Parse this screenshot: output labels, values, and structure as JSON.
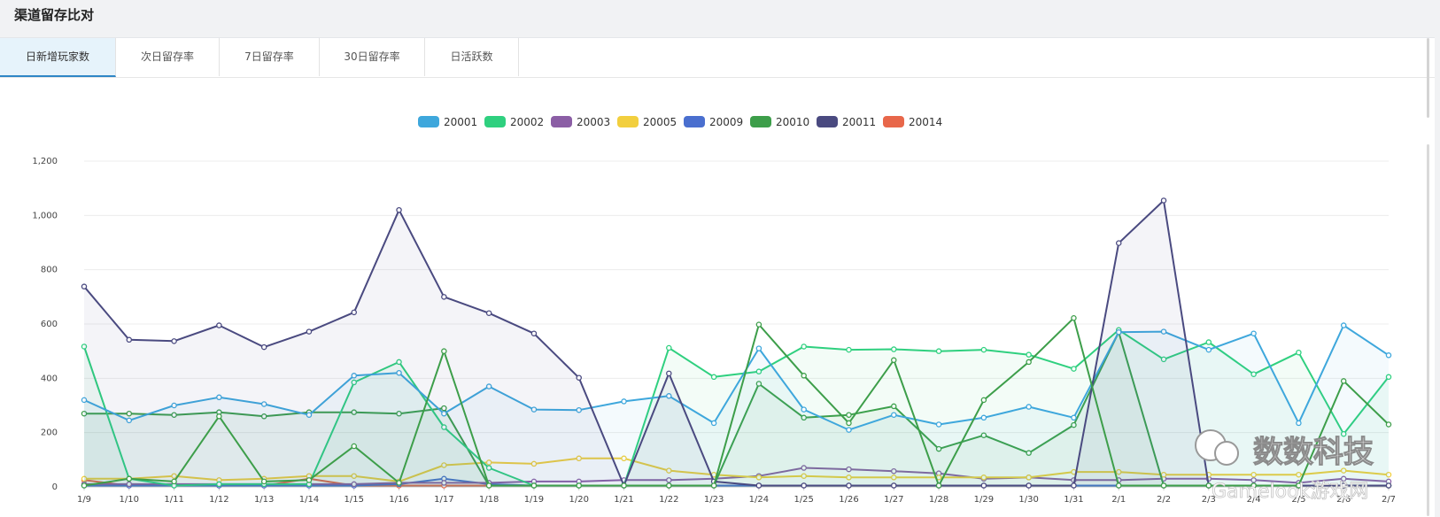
{
  "header": {
    "title": "渠道留存比对"
  },
  "tabs": [
    {
      "label": "日新增玩家数",
      "active": true
    },
    {
      "label": "次日留存率",
      "active": false
    },
    {
      "label": "7日留存率",
      "active": false
    },
    {
      "label": "30日留存率",
      "active": false
    },
    {
      "label": "日活跃数",
      "active": false
    }
  ],
  "watermark": {
    "brand": "数数科技",
    "site": "Gamelook游戏网"
  },
  "chart_data": {
    "type": "line",
    "x": [
      "1/9",
      "1/10",
      "1/11",
      "1/12",
      "1/13",
      "1/14",
      "1/15",
      "1/16",
      "1/17",
      "1/18",
      "1/19",
      "1/20",
      "1/21",
      "1/22",
      "1/23",
      "1/24",
      "1/25",
      "1/26",
      "1/27",
      "1/28",
      "1/29",
      "1/30",
      "1/31",
      "2/1",
      "2/2",
      "2/3",
      "2/4",
      "2/5",
      "2/6",
      "2/7"
    ],
    "ylim": [
      0,
      1200
    ],
    "yticks": [
      0,
      200,
      400,
      600,
      800,
      1000,
      1200
    ],
    "ytick_labels": [
      "0",
      "200",
      "400",
      "600",
      "800",
      "1,000",
      "1,200"
    ],
    "grid": true,
    "legend_position": "top-center",
    "series": [
      {
        "name": "20001",
        "color": "#3ea7dc",
        "values": [
          320,
          245,
          300,
          330,
          305,
          265,
          410,
          420,
          270,
          370,
          285,
          283,
          315,
          335,
          235,
          510,
          285,
          210,
          265,
          230,
          255,
          295,
          255,
          570,
          572,
          505,
          565,
          235,
          595,
          485
        ]
      },
      {
        "name": "20002",
        "color": "#2fd07f",
        "values": [
          517,
          30,
          5,
          10,
          10,
          10,
          385,
          460,
          220,
          70,
          5,
          5,
          5,
          512,
          405,
          425,
          517,
          505,
          507,
          500,
          505,
          487,
          435,
          578,
          470,
          533,
          415,
          495,
          195,
          405
        ]
      },
      {
        "name": "20003",
        "color": "#8b5ea5",
        "values": [
          10,
          10,
          10,
          10,
          10,
          10,
          10,
          15,
          15,
          15,
          20,
          20,
          25,
          25,
          30,
          40,
          70,
          65,
          58,
          50,
          30,
          35,
          25,
          25,
          30,
          30,
          25,
          15,
          30,
          20
        ]
      },
      {
        "name": "20005",
        "color": "#f2cf3e",
        "values": [
          30,
          30,
          40,
          25,
          30,
          40,
          40,
          20,
          80,
          90,
          85,
          105,
          105,
          60,
          45,
          35,
          40,
          35,
          35,
          35,
          35,
          35,
          55,
          55,
          45,
          45,
          45,
          45,
          60,
          45
        ]
      },
      {
        "name": "20009",
        "color": "#4a6fcf",
        "values": [
          5,
          5,
          5,
          5,
          5,
          5,
          5,
          10,
          30,
          10,
          5,
          5,
          5,
          5,
          5,
          5,
          5,
          5,
          5,
          5,
          5,
          5,
          5,
          5,
          5,
          5,
          5,
          5,
          5,
          5
        ]
      },
      {
        "name": "20010",
        "color": "#3d9e4a",
        "values": [
          270,
          270,
          265,
          275,
          260,
          275,
          275,
          270,
          290,
          5,
          5,
          5,
          5,
          5,
          5,
          380,
          255,
          265,
          297,
          140,
          190,
          125,
          228,
          570,
          5,
          5,
          5,
          5,
          5,
          5
        ]
      },
      {
        "name": "20011",
        "color": "#4a4a80",
        "values": [
          738,
          542,
          537,
          595,
          515,
          572,
          643,
          1020,
          700,
          640,
          565,
          402,
          5,
          418,
          20,
          5,
          5,
          5,
          5,
          5,
          5,
          5,
          5,
          898,
          1055,
          5,
          5,
          5,
          5,
          5
        ]
      },
      {
        "name": "20014",
        "color": "#e8674a",
        "values": [
          25,
          5,
          5,
          5,
          5,
          30,
          5,
          5,
          5,
          5,
          5,
          5,
          5,
          5,
          5,
          5,
          5,
          5,
          5,
          5,
          5,
          5,
          5,
          5,
          5,
          5,
          5,
          5,
          5,
          5
        ]
      }
    ],
    "overlay": {
      "name": "20010",
      "color": "#3d9e4a",
      "values": [
        5,
        30,
        20,
        260,
        20,
        25,
        150,
        15,
        500,
        5,
        5,
        5,
        5,
        5,
        5,
        598,
        410,
        235,
        467,
        5,
        320,
        460,
        622,
        5,
        5,
        5,
        5,
        5,
        390,
        230
      ]
    }
  }
}
